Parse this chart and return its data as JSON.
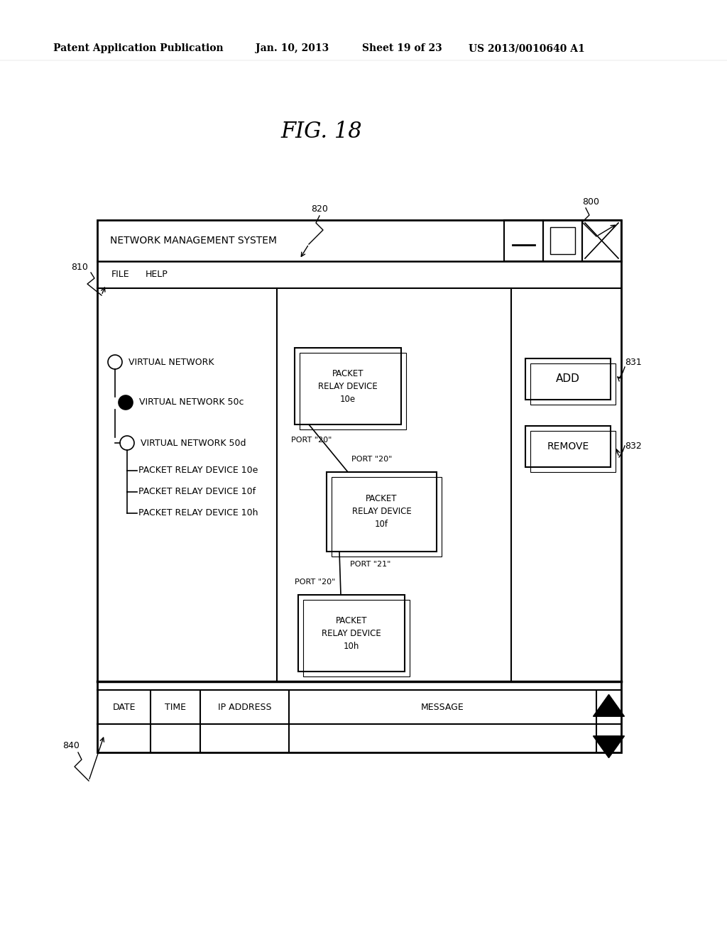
{
  "bg_color": "#ffffff",
  "header_text": "Patent Application Publication",
  "header_date": "Jan. 10, 2013",
  "header_sheet": "Sheet 19 of 23",
  "header_patent": "US 2013/0010640 A1",
  "fig_label": "FIG. 18",
  "window_title": "NETWORK MANAGEMENT SYSTEM",
  "menu_items": [
    "FILE",
    "HELP"
  ],
  "label_800": "800",
  "label_810": "810",
  "label_820": "820",
  "label_831": "831",
  "label_832": "832",
  "label_840": "840",
  "button_add": "ADD",
  "button_remove": "REMOVE",
  "log_headers": [
    "DATE",
    "TIME",
    "IP ADDRESS",
    "MESSAGE"
  ],
  "line_color": "#000000",
  "text_color": "#000000"
}
